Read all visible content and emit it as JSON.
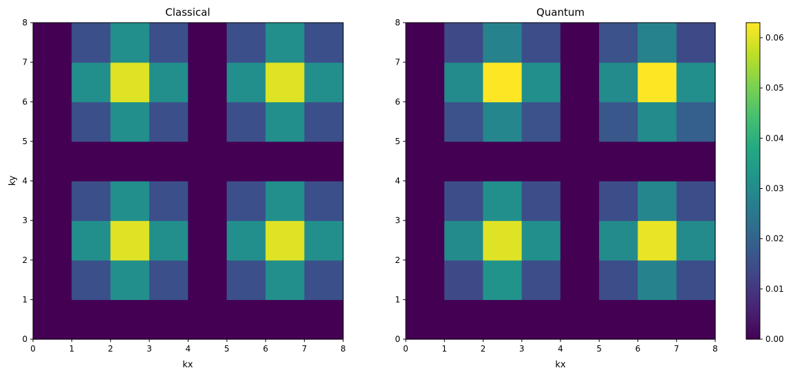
{
  "chart_data": [
    {
      "type": "heatmap",
      "title": "Classical",
      "xlabel": "kx",
      "ylabel": "ky",
      "xlim": [
        0,
        8
      ],
      "ylim": [
        0,
        8
      ],
      "xticks": [
        0,
        1,
        2,
        3,
        4,
        5,
        6,
        7,
        8
      ],
      "yticks": [
        0,
        1,
        2,
        3,
        4,
        5,
        6,
        7,
        8
      ],
      "grid": false,
      "row_order": "bottom-to-top (row 0 spans ky 0-1)",
      "z": [
        [
          0.0,
          0.0,
          0.0,
          0.0,
          0.0,
          0.0,
          0.0,
          0.0
        ],
        [
          0.0,
          0.0155,
          0.031,
          0.0155,
          0.0,
          0.0155,
          0.031,
          0.0155
        ],
        [
          0.0,
          0.031,
          0.06,
          0.031,
          0.0,
          0.031,
          0.06,
          0.031
        ],
        [
          0.0,
          0.0155,
          0.031,
          0.0155,
          0.0,
          0.0155,
          0.031,
          0.0155
        ],
        [
          0.0,
          0.0,
          0.0,
          0.0,
          0.0,
          0.0,
          0.0,
          0.0
        ],
        [
          0.0,
          0.0155,
          0.031,
          0.0155,
          0.0,
          0.0155,
          0.031,
          0.0155
        ],
        [
          0.0,
          0.031,
          0.06,
          0.031,
          0.0,
          0.031,
          0.06,
          0.031
        ],
        [
          0.0,
          0.0155,
          0.031,
          0.0155,
          0.0,
          0.0155,
          0.031,
          0.0155
        ]
      ]
    },
    {
      "type": "heatmap",
      "title": "Quantum",
      "xlabel": "kx",
      "ylabel": "",
      "xlim": [
        0,
        8
      ],
      "ylim": [
        0,
        8
      ],
      "xticks": [
        0,
        1,
        2,
        3,
        4,
        5,
        6,
        7,
        8
      ],
      "yticks": [
        0,
        1,
        2,
        3,
        4,
        5,
        6,
        7,
        8
      ],
      "grid": false,
      "row_order": "bottom-to-top (row 0 spans ky 0-1)",
      "z": [
        [
          0.0,
          0.0,
          0.0,
          0.0,
          0.0,
          0.0,
          0.0,
          0.0
        ],
        [
          0.0,
          0.014,
          0.032,
          0.015,
          0.0,
          0.015,
          0.028,
          0.015
        ],
        [
          0.0,
          0.03,
          0.06,
          0.031,
          0.0,
          0.03,
          0.061,
          0.03
        ],
        [
          0.0,
          0.015,
          0.031,
          0.015,
          0.0,
          0.015,
          0.029,
          0.015
        ],
        [
          0.0,
          0.0,
          0.0,
          0.0,
          0.0,
          0.0,
          0.0,
          0.0
        ],
        [
          0.0,
          0.016,
          0.029,
          0.016,
          0.0,
          0.017,
          0.03,
          0.019
        ],
        [
          0.0,
          0.03,
          0.063,
          0.031,
          0.0,
          0.03,
          0.063,
          0.031
        ],
        [
          0.0,
          0.014,
          0.028,
          0.015,
          0.0,
          0.016,
          0.028,
          0.014
        ]
      ]
    }
  ],
  "colorbar": {
    "colormap": "viridis",
    "vmin": 0.0,
    "vmax": 0.063,
    "ticks": [
      0.0,
      0.01,
      0.02,
      0.03,
      0.04,
      0.05,
      0.06
    ],
    "tick_labels": [
      "0.00",
      "0.01",
      "0.02",
      "0.03",
      "0.04",
      "0.05",
      "0.06"
    ]
  }
}
